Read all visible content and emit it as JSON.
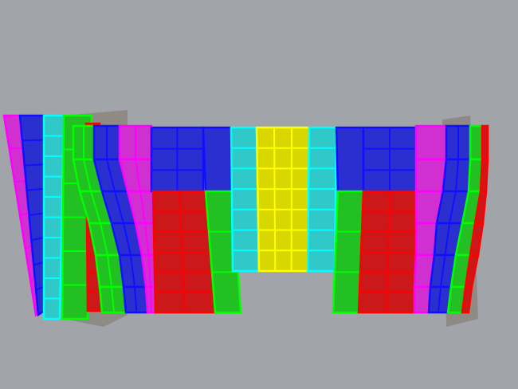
{
  "viewport": {
    "background": "#a1a5aa",
    "model": "facade-panel-model"
  },
  "colors": {
    "blue": "#2b2fd0",
    "blue_edge": "#1010ff",
    "magenta": "#d030d0",
    "magenta_edge": "#ff00ff",
    "red": "#cc1818",
    "red_edge": "#ff0000",
    "green": "#22c022",
    "green_edge": "#00ff00",
    "cyan": "#30c8c8",
    "cyan_edge": "#00ffff",
    "yellow": "#d8d800",
    "yellow_edge": "#ffff00",
    "backing": "#8f8a84"
  }
}
